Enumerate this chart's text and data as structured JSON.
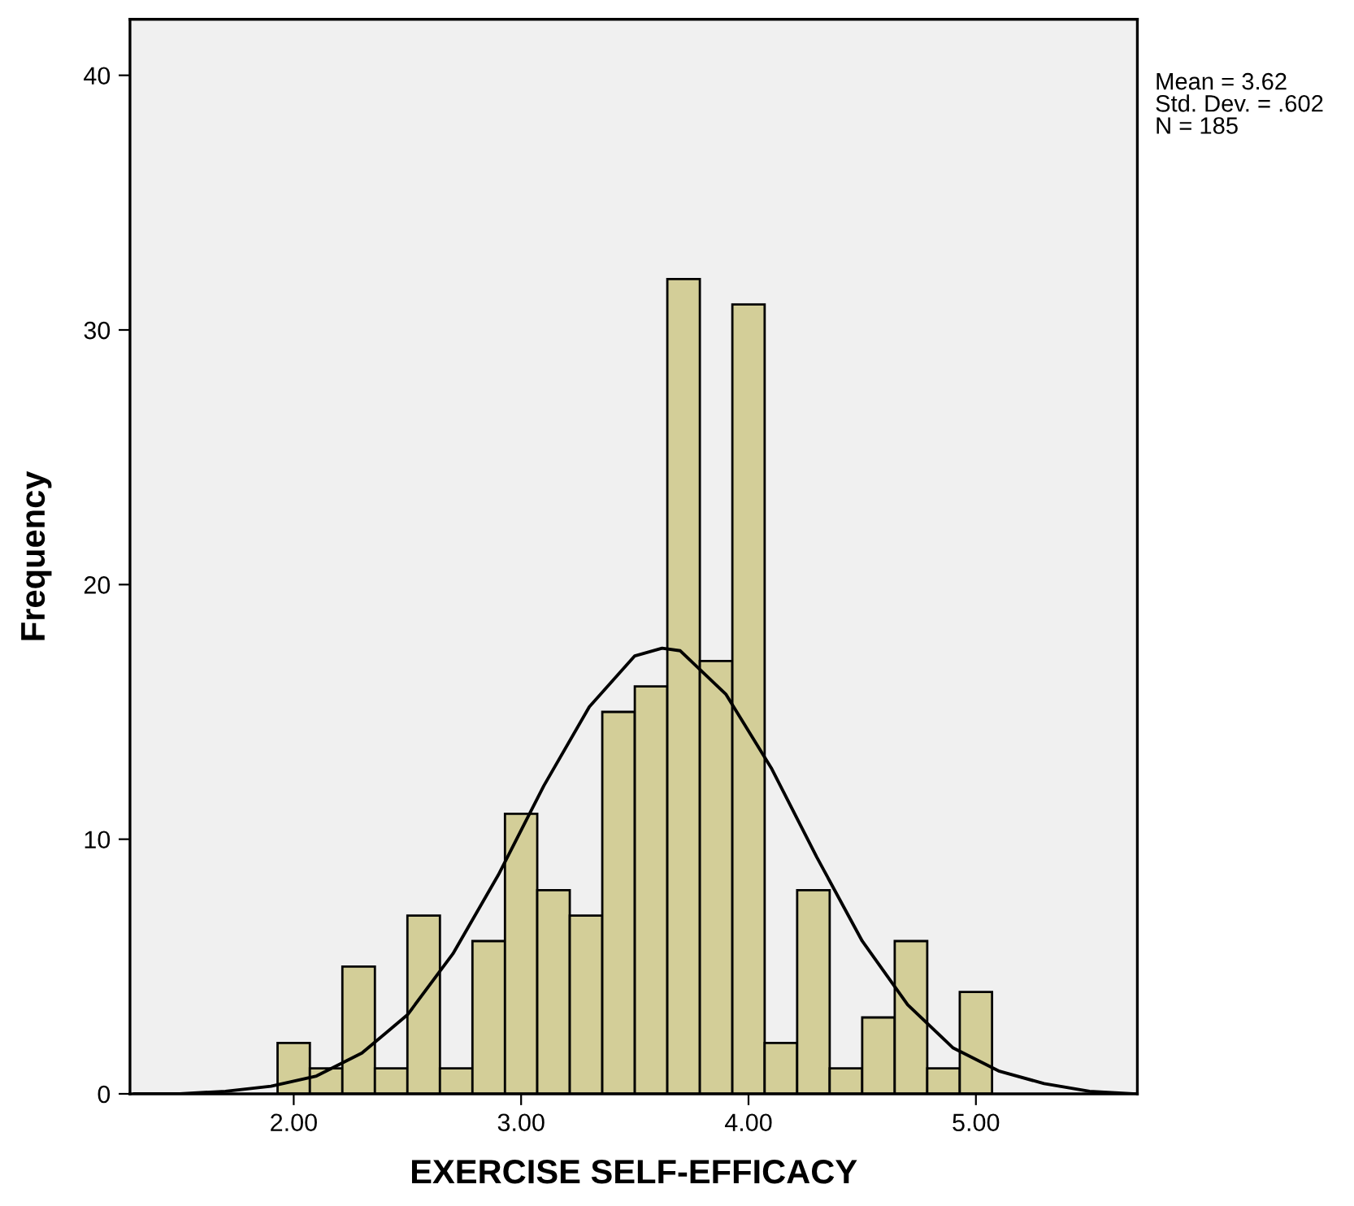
{
  "chart_data": {
    "type": "histogram",
    "xlabel": "EXERCISE SELF-EFFICACY",
    "ylabel": "Frequency",
    "annotations": [
      "Mean = 3.62\nStd. Dev. = .602\nN = 185"
    ],
    "series": [
      {
        "color": "#d3ce98",
        "bins": [
          1.929,
          2.071,
          2.214,
          2.357,
          2.5,
          2.643,
          2.786,
          2.929,
          3.071,
          3.214,
          3.357,
          3.5,
          3.643,
          3.786,
          3.929,
          4.071,
          4.214,
          4.357,
          4.5,
          4.643,
          4.786,
          4.929,
          5.071
        ],
        "values": [
          2,
          1,
          5,
          1,
          7,
          1,
          6,
          11,
          8,
          7,
          15,
          16,
          32,
          17,
          31,
          2,
          8,
          1,
          3,
          6,
          1,
          4
        ]
      },
      {
        "type": "line",
        "color": "#000000",
        "x": [
          1.3,
          1.5,
          1.7,
          1.9,
          2.1,
          2.3,
          2.5,
          2.7,
          2.9,
          3.1,
          3.3,
          3.5,
          3.62,
          3.7,
          3.9,
          4.1,
          4.3,
          4.5,
          4.7,
          4.9,
          5.1,
          5.3,
          5.5,
          5.7
        ],
        "values": [
          0.0,
          0.0,
          0.1,
          0.3,
          0.7,
          1.6,
          3.1,
          5.5,
          8.6,
          12.1,
          15.2,
          17.2,
          17.5,
          17.4,
          15.7,
          12.8,
          9.3,
          6.0,
          3.5,
          1.8,
          0.9,
          0.4,
          0.1,
          0.0
        ]
      }
    ],
    "xlim": [
      1.28,
      5.71
    ],
    "ylim": [
      0,
      42.2
    ],
    "xticks": [
      {
        "value": 2,
        "label": "2.00"
      },
      {
        "value": 3,
        "label": "3.00"
      },
      {
        "value": 4,
        "label": "4.00"
      },
      {
        "value": 5,
        "label": "5.00"
      }
    ],
    "yticks": [
      0,
      10,
      20,
      30,
      40
    ],
    "grid": false,
    "legend": false
  }
}
